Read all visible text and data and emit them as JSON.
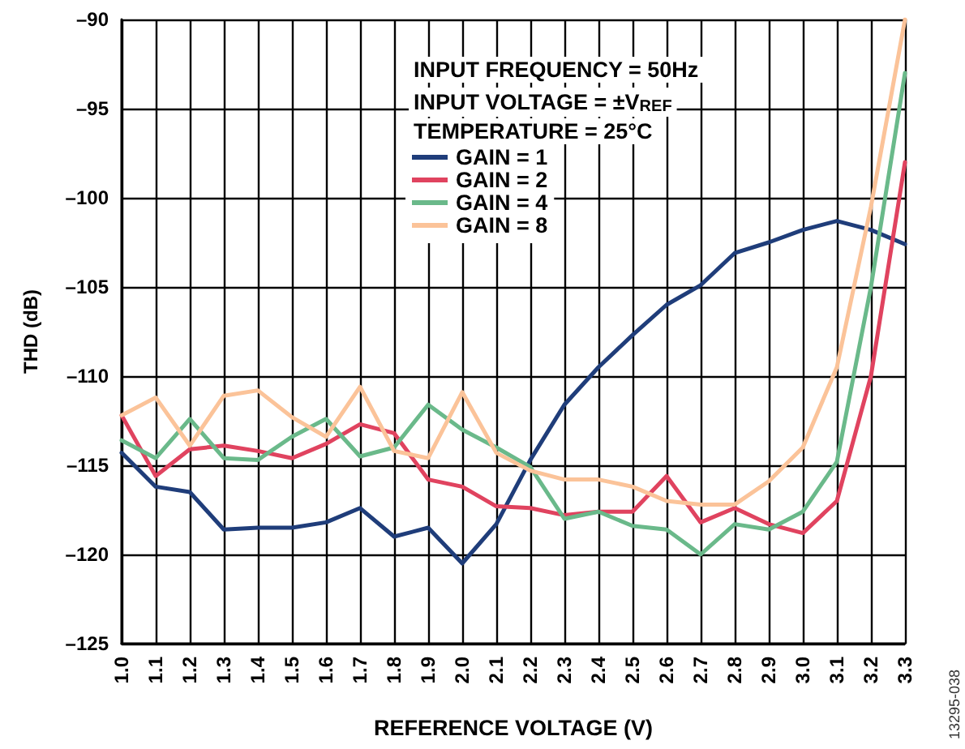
{
  "chart_data": {
    "type": "line",
    "xlabel": "REFERENCE VOLTAGE (V)",
    "ylabel": "THD (dB)",
    "annotations": [
      "INPUT FREQUENCY = 50Hz",
      "INPUT VOLTAGE = ±V$_{REF}$",
      "TEMPERATURE = 25°C",
      "13295-038"
    ],
    "x": [
      1.0,
      1.1,
      1.2,
      1.3,
      1.4,
      1.5,
      1.6,
      1.7,
      1.8,
      1.9,
      2.0,
      2.1,
      2.2,
      2.3,
      2.4,
      2.5,
      2.6,
      2.7,
      2.8,
      2.9,
      3.0,
      3.1,
      3.2,
      3.3
    ],
    "series": [
      {
        "name": "GAIN = 1",
        "color": "#1f3d7a",
        "values": [
          -114.3,
          -116.2,
          -116.5,
          -118.6,
          -118.5,
          -118.5,
          -118.2,
          -117.4,
          -119,
          -118.5,
          -120.5,
          -118.3,
          -114.7,
          -111.6,
          -109.5,
          -107.7,
          -106,
          -104.9,
          -103.1,
          -102.5,
          -101.8,
          -101.3,
          -101.8,
          -102.6
        ]
      },
      {
        "name": "GAIN = 2",
        "color": "#e0435f",
        "values": [
          -112.2,
          -115.6,
          -114.1,
          -113.9,
          -114.2,
          -114.6,
          -113.8,
          -112.7,
          -113.2,
          -115.8,
          -116.2,
          -117.3,
          -117.4,
          -117.8,
          -117.6,
          -117.6,
          -115.6,
          -118.2,
          -117.4,
          -118.3,
          -118.8,
          -117,
          -110,
          -98
        ]
      },
      {
        "name": "GAIN = 4",
        "color": "#6ab98a",
        "values": [
          -113.6,
          -114.6,
          -112.4,
          -114.6,
          -114.7,
          -113.4,
          -112.4,
          -114.5,
          -114,
          -111.6,
          -113,
          -114,
          -115.1,
          -118,
          -117.6,
          -118.4,
          -118.6,
          -120,
          -118.3,
          -118.6,
          -117.6,
          -114.8,
          -105,
          -93
        ]
      },
      {
        "name": "GAIN = 8",
        "color": "#fbc399",
        "values": [
          -112.2,
          -111.2,
          -113.9,
          -111.1,
          -110.8,
          -112.3,
          -113.4,
          -110.6,
          -114.2,
          -114.6,
          -110.9,
          -114.3,
          -115.3,
          -115.8,
          -115.8,
          -116.2,
          -117,
          -117.2,
          -117.2,
          -115.9,
          -114,
          -109.5,
          -100.5,
          -90
        ]
      }
    ],
    "xlim": [
      1.0,
      3.3
    ],
    "xticks": [
      {
        "value": 1.0,
        "label": "1.0"
      },
      1.1,
      1.2,
      1.3,
      1.4,
      1.5,
      1.6,
      1.7,
      1.8,
      1.9,
      {
        "value": 2.0,
        "label": "2.0"
      },
      2.1,
      2.2,
      2.3,
      2.4,
      2.5,
      2.6,
      2.7,
      2.8,
      2.9,
      {
        "value": 3.0,
        "label": "3.0"
      },
      3.1,
      3.2,
      3.3
    ],
    "ylim": [
      -125,
      -90
    ],
    "yticks": [
      {
        "value": -125,
        "label": "–125"
      },
      {
        "value": -120,
        "label": "–120"
      },
      {
        "value": -115,
        "label": "–115"
      },
      {
        "value": -110,
        "label": "–110"
      },
      {
        "value": -105,
        "label": "–105"
      },
      {
        "value": -100,
        "label": "–100"
      },
      {
        "value": -95,
        "label": "–95"
      },
      {
        "value": -90,
        "label": "–90"
      }
    ],
    "grid": true,
    "legend": "top right",
    "marker": "none",
    "line_style": "solid"
  }
}
